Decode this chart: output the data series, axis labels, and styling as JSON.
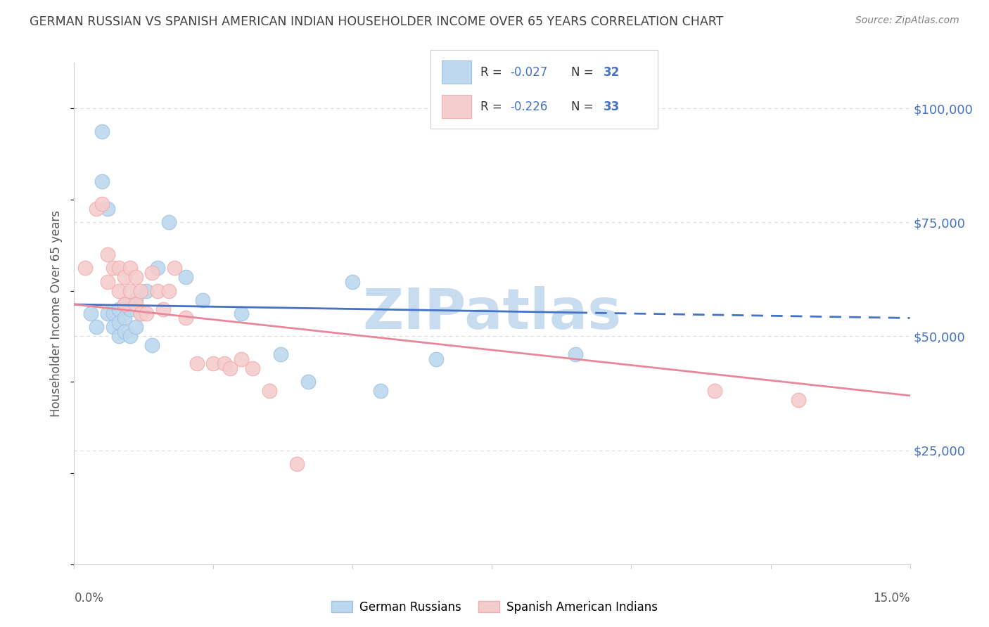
{
  "title": "GERMAN RUSSIAN VS SPANISH AMERICAN INDIAN HOUSEHOLDER INCOME OVER 65 YEARS CORRELATION CHART",
  "source": "Source: ZipAtlas.com",
  "ylabel": "Householder Income Over 65 years",
  "watermark": "ZIPatlas",
  "legend_label1": "German Russians",
  "legend_label2": "Spanish American Indians",
  "ytick_labels": [
    "$25,000",
    "$50,000",
    "$75,000",
    "$100,000"
  ],
  "ytick_values": [
    25000,
    50000,
    75000,
    100000
  ],
  "xlim": [
    0.0,
    0.15
  ],
  "ylim": [
    0,
    110000
  ],
  "blue_r": -0.027,
  "blue_n": 32,
  "pink_r": -0.226,
  "pink_n": 33,
  "blue_scatter_x": [
    0.003,
    0.004,
    0.005,
    0.005,
    0.006,
    0.006,
    0.007,
    0.007,
    0.008,
    0.008,
    0.008,
    0.009,
    0.009,
    0.009,
    0.01,
    0.01,
    0.011,
    0.011,
    0.012,
    0.013,
    0.014,
    0.015,
    0.017,
    0.02,
    0.023,
    0.03,
    0.037,
    0.042,
    0.05,
    0.055,
    0.065,
    0.09
  ],
  "blue_scatter_y": [
    55000,
    52000,
    95000,
    84000,
    78000,
    55000,
    55000,
    52000,
    56000,
    53000,
    50000,
    57000,
    54000,
    51000,
    56000,
    50000,
    58000,
    52000,
    55000,
    60000,
    48000,
    65000,
    75000,
    63000,
    58000,
    55000,
    46000,
    40000,
    62000,
    38000,
    45000,
    46000
  ],
  "pink_scatter_x": [
    0.002,
    0.004,
    0.005,
    0.006,
    0.006,
    0.007,
    0.008,
    0.008,
    0.009,
    0.009,
    0.01,
    0.01,
    0.011,
    0.011,
    0.012,
    0.012,
    0.013,
    0.014,
    0.015,
    0.016,
    0.017,
    0.018,
    0.02,
    0.022,
    0.025,
    0.027,
    0.028,
    0.03,
    0.032,
    0.035,
    0.04,
    0.115,
    0.13
  ],
  "pink_scatter_y": [
    65000,
    78000,
    79000,
    68000,
    62000,
    65000,
    60000,
    65000,
    63000,
    57000,
    65000,
    60000,
    63000,
    57000,
    60000,
    55000,
    55000,
    64000,
    60000,
    56000,
    60000,
    65000,
    54000,
    44000,
    44000,
    44000,
    43000,
    45000,
    43000,
    38000,
    22000,
    38000,
    36000
  ],
  "blue_line_color": "#4472C4",
  "pink_line_color": "#E8879A",
  "blue_scatter_facecolor": "#BDD7EE",
  "pink_scatter_facecolor": "#F4CCCC",
  "blue_scatter_edgecolor": "#9DC3E6",
  "pink_scatter_edgecolor": "#F4ACAC",
  "title_color": "#404040",
  "source_color": "#808080",
  "axis_label_color": "#595959",
  "right_tick_color": "#4472C4",
  "background_color": "#FFFFFF",
  "grid_color": "#D9D9D9",
  "watermark_color": "#C8DCF0"
}
